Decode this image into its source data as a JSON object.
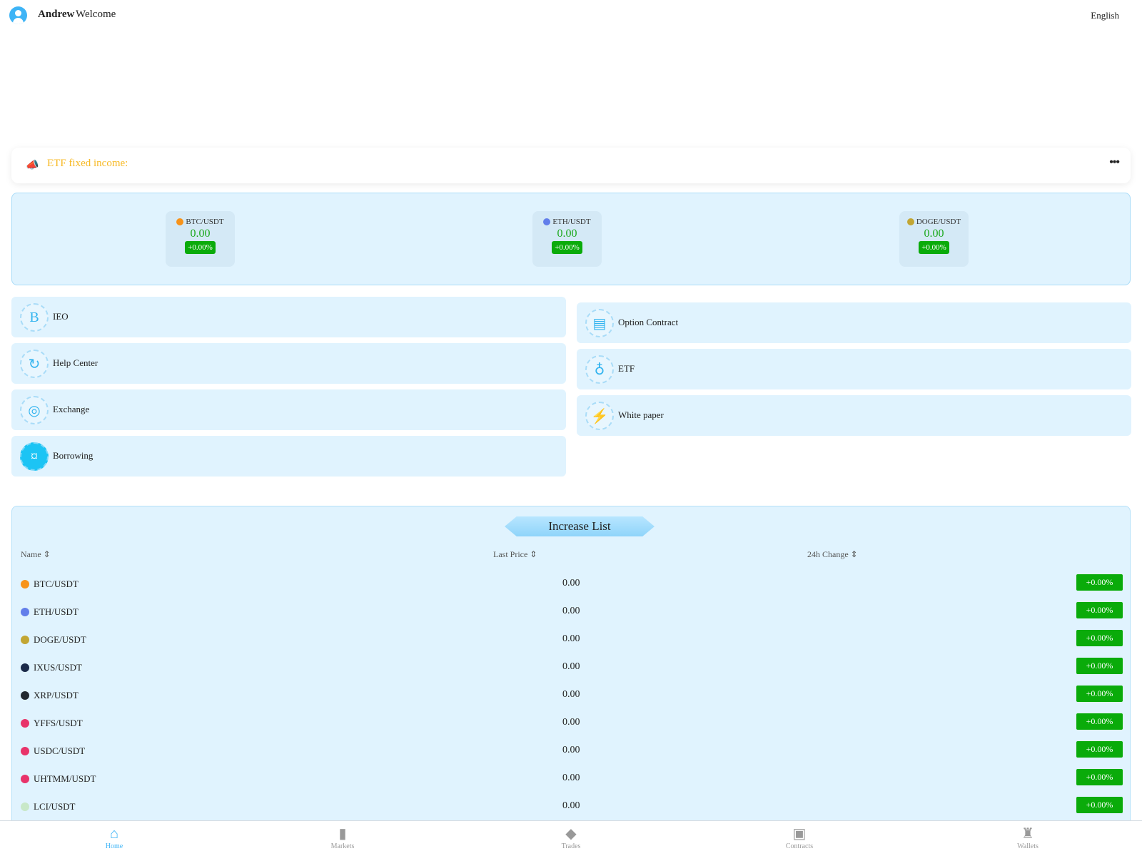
{
  "header": {
    "username": "Andrew",
    "welcome": "Welcome",
    "language": "English"
  },
  "notice": {
    "label": "ETF fixed income:",
    "more": "•••"
  },
  "tickers": [
    {
      "pair": "BTC/USDT",
      "price": "0.00",
      "change": "+0.00%",
      "color": "#f7931a"
    },
    {
      "pair": "ETH/USDT",
      "price": "0.00",
      "change": "+0.00%",
      "color": "#627eea"
    },
    {
      "pair": "DOGE/USDT",
      "price": "0.00",
      "change": "+0.00%",
      "color": "#c2a633"
    }
  ],
  "menu_left": [
    {
      "label": "IEO",
      "icon": "bitcoin-icon",
      "glyph": "B"
    },
    {
      "label": "Help Center",
      "icon": "support-icon",
      "glyph": "↻"
    },
    {
      "label": "Exchange",
      "icon": "exchange-icon",
      "glyph": "◎"
    },
    {
      "label": "Borrowing",
      "icon": "borrow-icon",
      "glyph": "¤"
    }
  ],
  "menu_right": [
    {
      "label": "Option Contract",
      "icon": "clipboard-icon",
      "glyph": "▤"
    },
    {
      "label": "ETF",
      "icon": "money-bag-icon",
      "glyph": "♁"
    },
    {
      "label": "White paper",
      "icon": "lightbulb-icon",
      "glyph": "⚡"
    }
  ],
  "increase_list": {
    "title": "Increase List",
    "columns": [
      "Name",
      "Last Price",
      "24h Change"
    ],
    "rows": [
      {
        "pair": "BTC/USDT",
        "price": "0.00",
        "change": "+0.00%",
        "color": "#f7931a"
      },
      {
        "pair": "ETH/USDT",
        "price": "0.00",
        "change": "+0.00%",
        "color": "#627eea"
      },
      {
        "pair": "DOGE/USDT",
        "price": "0.00",
        "change": "+0.00%",
        "color": "#c2a633"
      },
      {
        "pair": "IXUS/USDT",
        "price": "0.00",
        "change": "+0.00%",
        "color": "#1b2a4a"
      },
      {
        "pair": "XRP/USDT",
        "price": "0.00",
        "change": "+0.00%",
        "color": "#23292f"
      },
      {
        "pair": "YFFS/USDT",
        "price": "0.00",
        "change": "+0.00%",
        "color": "#e8336a"
      },
      {
        "pair": "USDC/USDT",
        "price": "0.00",
        "change": "+0.00%",
        "color": "#e8336a"
      },
      {
        "pair": "UHTMM/USDT",
        "price": "0.00",
        "change": "+0.00%",
        "color": "#e8336a"
      },
      {
        "pair": "LCI/USDT",
        "price": "0.00",
        "change": "+0.00%",
        "color": "#c8e8c8"
      }
    ]
  },
  "nav": [
    {
      "label": "Home",
      "icon": "home-icon",
      "glyph": "⌂",
      "active": true
    },
    {
      "label": "Markets",
      "icon": "bar-chart-icon",
      "glyph": "▮"
    },
    {
      "label": "Trades",
      "icon": "cube-icon",
      "glyph": "◆"
    },
    {
      "label": "Contracts",
      "icon": "contract-icon",
      "glyph": "▣"
    },
    {
      "label": "Wallets",
      "icon": "wallet-bag-icon",
      "glyph": "♜"
    }
  ],
  "colors": {
    "accent": "#3eb4f6",
    "up": "#0aab0a",
    "notice": "#f7b924",
    "panel": "#e0f3fe"
  }
}
